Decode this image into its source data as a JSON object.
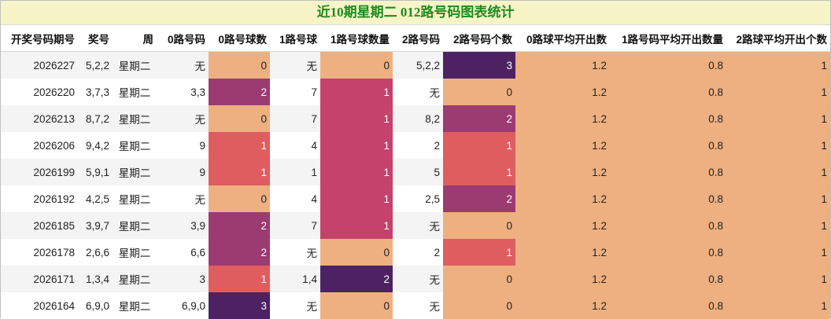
{
  "title": "近10期星期二 012路号码图表统计",
  "headers": [
    "开奖号码期号",
    "奖号",
    "周",
    "0路号码",
    "0路号球数",
    "1路号球",
    "1路号球数量",
    "2路号码",
    "2路号码个数",
    "0路球平均开出数",
    "1路号码平均开出数量",
    "2路球平均开出个数"
  ],
  "rows": [
    [
      "2026227",
      "5,2,2",
      "星期二",
      "无",
      "0",
      "无",
      "0",
      "5,2,2",
      "3",
      "1.2",
      "0.8",
      "1"
    ],
    [
      "2026220",
      "3,7,3",
      "星期二",
      "3,3",
      "2",
      "7",
      "1",
      "无",
      "0",
      "1.2",
      "0.8",
      "1"
    ],
    [
      "2026213",
      "8,7,2",
      "星期二",
      "无",
      "0",
      "7",
      "1",
      "8,2",
      "2",
      "1.2",
      "0.8",
      "1"
    ],
    [
      "2026206",
      "9,4,2",
      "星期二",
      "9",
      "1",
      "4",
      "1",
      "2",
      "1",
      "1.2",
      "0.8",
      "1"
    ],
    [
      "2026199",
      "5,9,1",
      "星期二",
      "9",
      "1",
      "1",
      "1",
      "5",
      "1",
      "1.2",
      "0.8",
      "1"
    ],
    [
      "2026192",
      "4,2,5",
      "星期二",
      "无",
      "0",
      "4",
      "1",
      "2,5",
      "2",
      "1.2",
      "0.8",
      "1"
    ],
    [
      "2026185",
      "3,9,7",
      "星期二",
      "3,9",
      "2",
      "7",
      "1",
      "无",
      "0",
      "1.2",
      "0.8",
      "1"
    ],
    [
      "2026178",
      "2,6,6",
      "星期二",
      "6,6",
      "2",
      "无",
      "0",
      "2",
      "1",
      "1.2",
      "0.8",
      "1"
    ],
    [
      "2026171",
      "1,3,4",
      "星期二",
      "3",
      "1",
      "1,4",
      "2",
      "无",
      "0",
      "1.2",
      "0.8",
      "1"
    ],
    [
      "2026164",
      "6,9,0",
      "星期二",
      "6,9,0",
      "3",
      "无",
      "0",
      "无",
      "0",
      "1.2",
      "0.8",
      "1"
    ]
  ],
  "colors": {
    "count_0": "#eeb081",
    "count_1": "#df5d5f",
    "count_2": "#9c3a72",
    "count_3": "#4c2262",
    "ones_count_1": "#c4426b",
    "average": "#eeb081",
    "title_bg": "#f7f4c7",
    "title_text": "#1f8a1f"
  }
}
